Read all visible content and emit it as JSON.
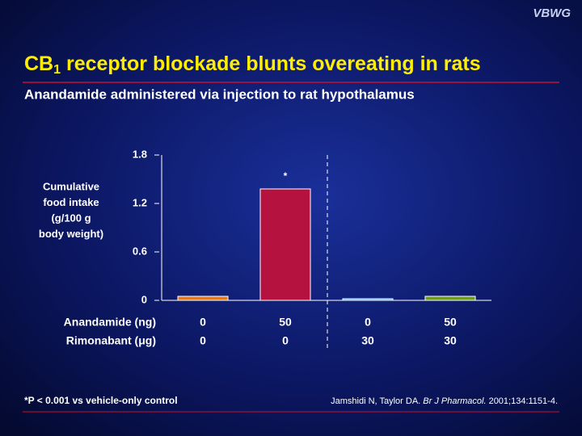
{
  "logo": "VBWG",
  "chart_data": {
    "type": "bar",
    "title": {
      "main": "CB",
      "sub": "1",
      "rest": " receptor blockade blunts overeating in rats"
    },
    "subtitle": "Anandamide administered via injection to rat hypothalamus",
    "ylabel": [
      "Cumulative",
      "food intake",
      "(g/100 g",
      "body weight)"
    ],
    "categories": [
      null,
      null,
      null,
      null
    ],
    "values": [
      0.05,
      1.38,
      0.02,
      0.05
    ],
    "colors": [
      "#e07a20",
      "#b5123f",
      "#4aa8e8",
      "#6e9a1e"
    ],
    "ylim": [
      0,
      1.8
    ],
    "yticks": [
      0,
      0.6,
      1.2,
      1.8
    ],
    "annotations": [
      {
        "index": 1,
        "text": "*"
      }
    ],
    "dose_table": [
      {
        "label": "Anandamide (ng)",
        "values": [
          0,
          50,
          0,
          50
        ]
      },
      {
        "label": "Rimonabant (μg)",
        "values": [
          0,
          0,
          30,
          30
        ]
      }
    ],
    "footnote": "*P < 0.001 vs vehicle-only control",
    "citation": {
      "authors": "Jamshidi N, Taylor DA. ",
      "journal": "Br J Pharmacol.",
      "details": " 2001;134:1151-4."
    }
  }
}
